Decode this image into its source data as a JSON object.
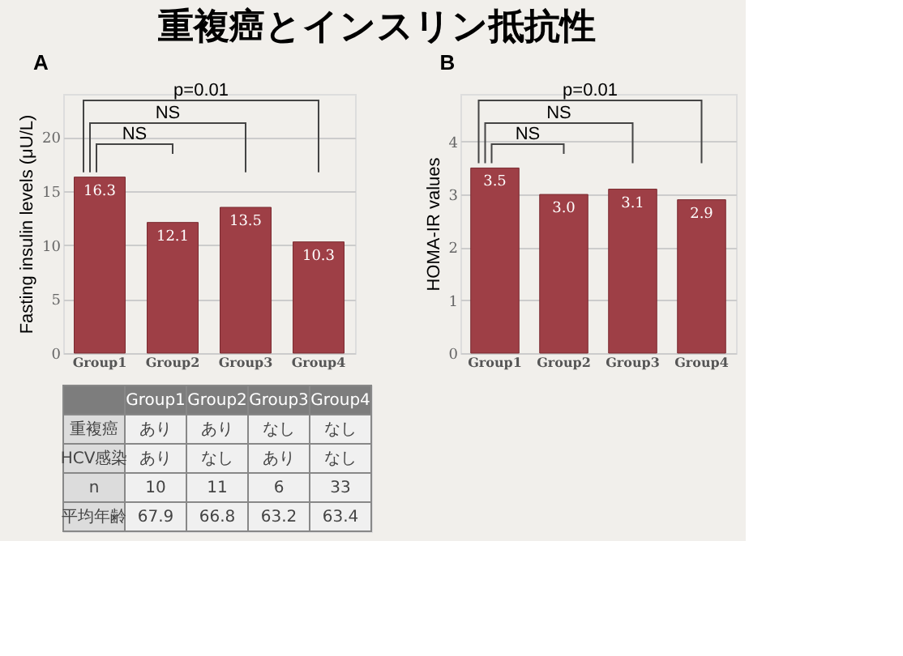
{
  "chart_data": [
    {
      "type": "bar",
      "title": "重複癌とインスリン抵抗性",
      "subtitle": "A",
      "ylabel": "Fasting insulin levels (μU/L)",
      "categories": [
        "Group1",
        "Group2",
        "Group3",
        "Group4"
      ],
      "values": [
        16.3,
        12.1,
        13.5,
        10.3
      ],
      "color": "#9e3f46",
      "ylim": [
        0,
        24
      ],
      "yticks": [
        0,
        5,
        10,
        15,
        20
      ],
      "grid": "y",
      "data_labels": true,
      "legend": false,
      "annotations": [
        "p=0.01",
        "NS",
        "NS"
      ]
    },
    {
      "type": "bar",
      "subtitle": "B",
      "ylabel": "HOMA-IR values",
      "categories": [
        "Group1",
        "Group2",
        "Group3",
        "Group4"
      ],
      "values": [
        3.5,
        3.0,
        3.1,
        2.9
      ],
      "value_labels": [
        "3.5",
        "3.0",
        "3.1",
        "2.9"
      ],
      "color": "#9e3f46",
      "ylim": [
        0,
        4.9
      ],
      "yticks": [
        0,
        1,
        2,
        3,
        4
      ],
      "grid": "y",
      "legend": false,
      "annotations": [
        "p=0.01",
        "NS",
        "NS"
      ]
    },
    {
      "type": "other",
      "categories": [
        "Group1",
        "Group2",
        "Group3",
        "Group4"
      ],
      "y_categories": [
        "重複癌",
        "HCV感染",
        "n",
        "平均年齢"
      ],
      "cell_labels": [
        [
          "あり",
          "あり",
          "なし",
          "なし"
        ],
        [
          "あり",
          "なし",
          "あり",
          "なし"
        ],
        [
          "10",
          "11",
          "6",
          "33"
        ],
        [
          "67.9",
          "66.8",
          "63.2",
          "63.4"
        ]
      ]
    }
  ]
}
